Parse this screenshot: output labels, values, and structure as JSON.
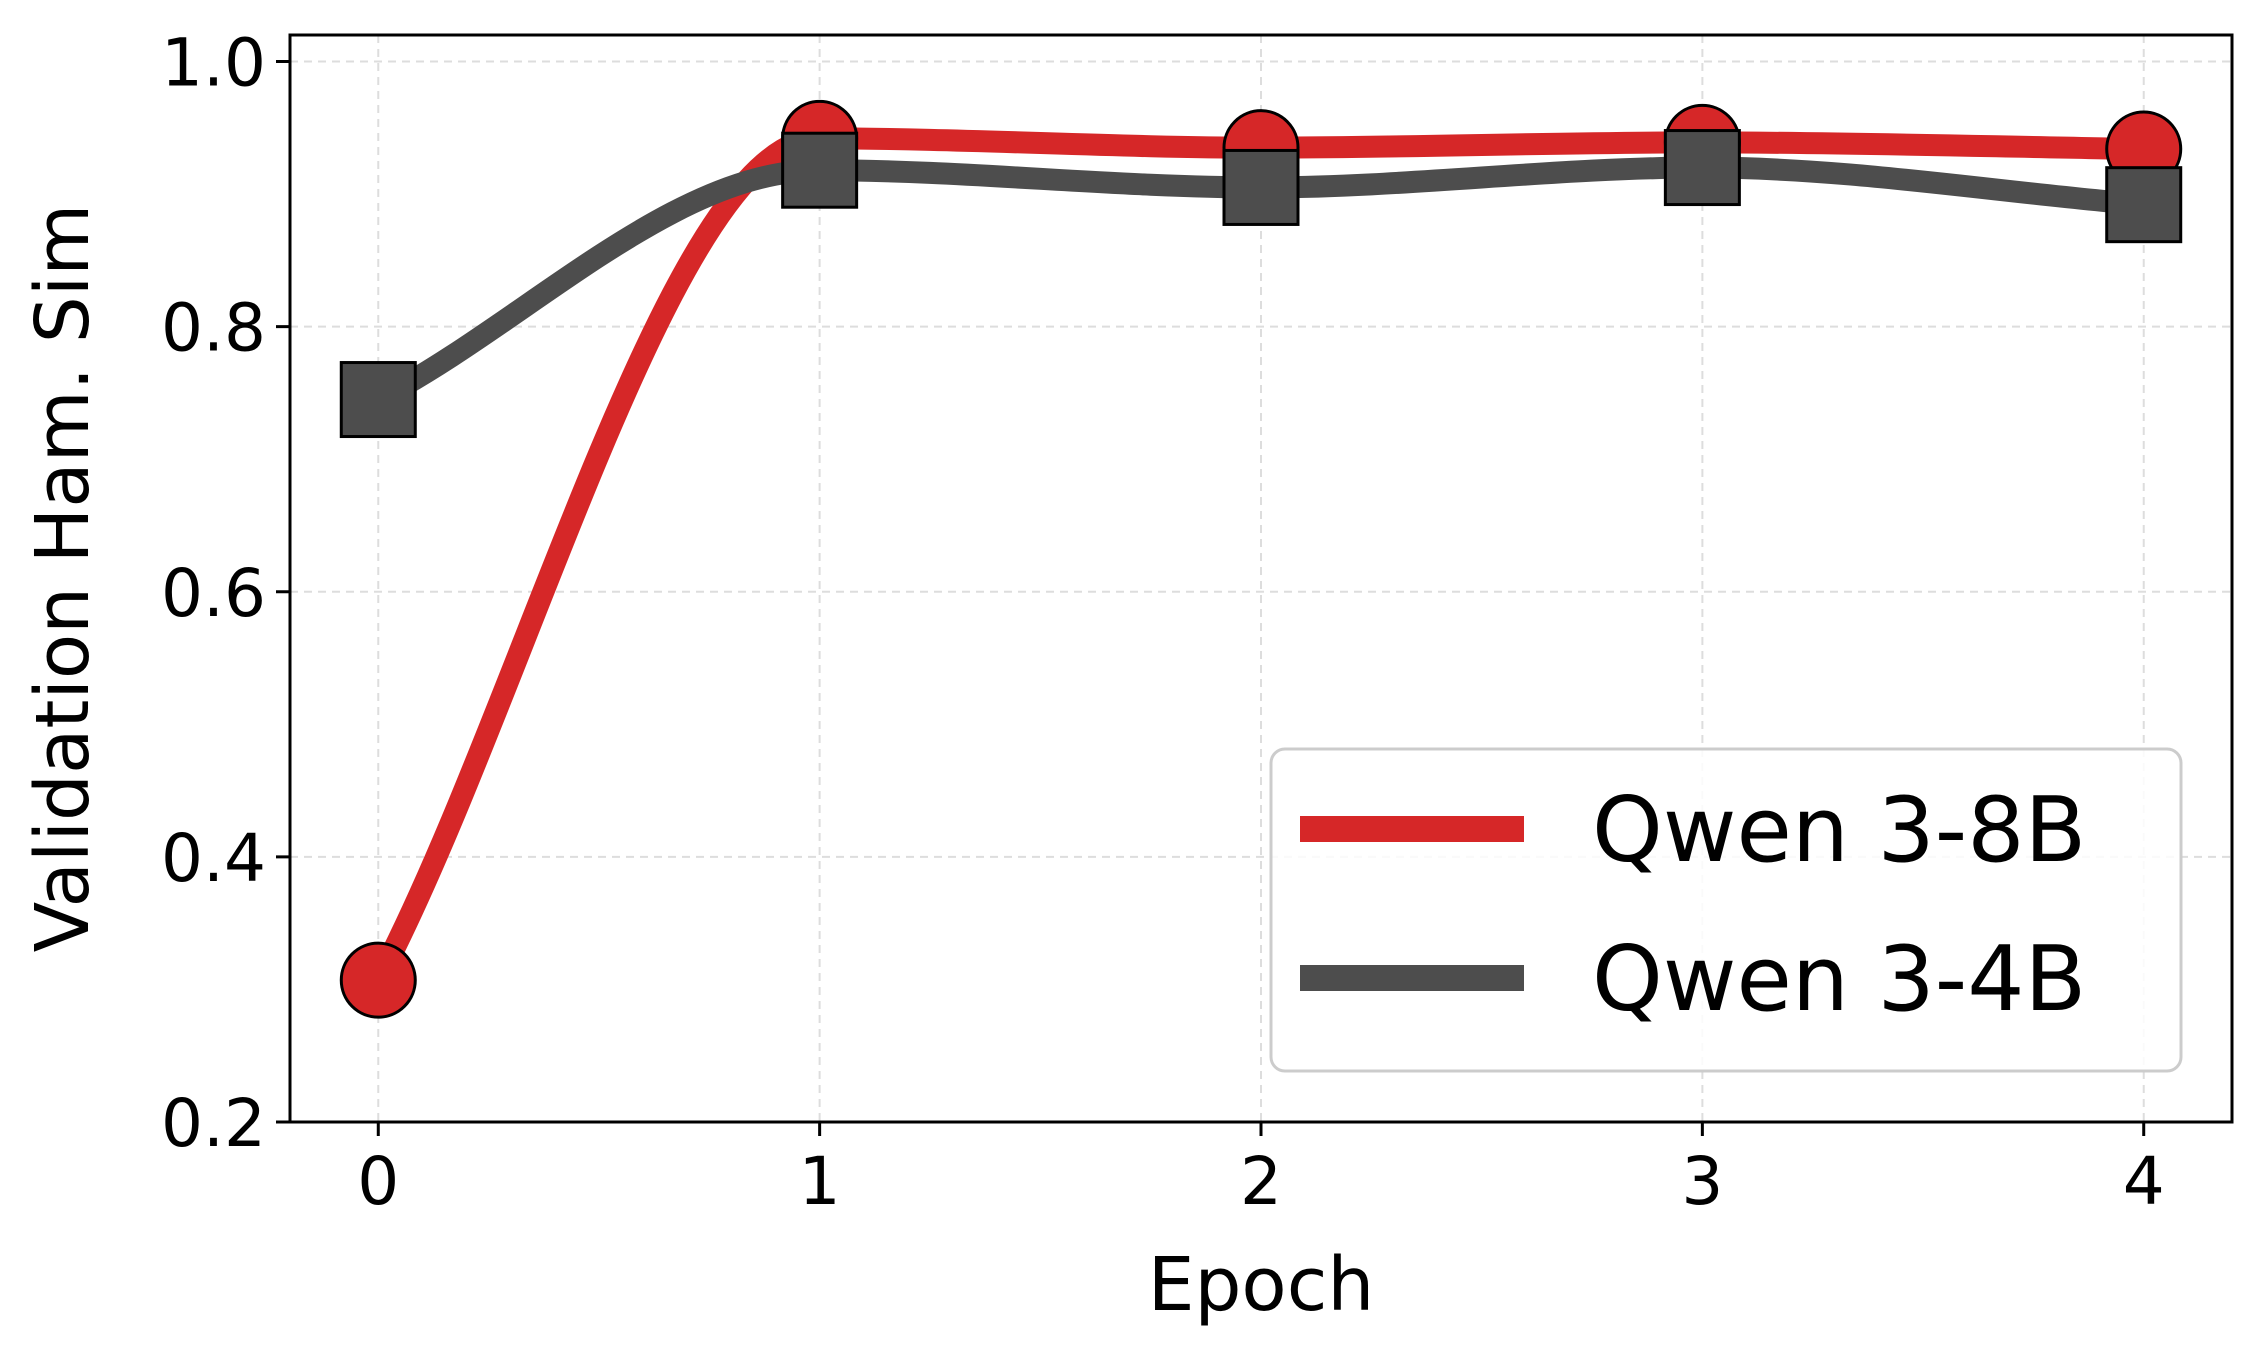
{
  "chart_data": {
    "type": "line",
    "title": "",
    "xlabel": "Epoch",
    "ylabel": "Validation Ham. Sim",
    "x": [
      0,
      1,
      2,
      3,
      4
    ],
    "xticks": [
      "0",
      "1",
      "2",
      "3",
      "4"
    ],
    "yticks": [
      "0.2",
      "0.4",
      "0.6",
      "0.8",
      "1.0"
    ],
    "xlim": [
      -0.2,
      4.2
    ],
    "ylim": [
      0.2,
      1.02
    ],
    "grid": true,
    "legend_position": "lower-right",
    "smooth": true,
    "series": [
      {
        "name": "Qwen 3-8B",
        "values": [
          0.307,
          0.942,
          0.935,
          0.939,
          0.934
        ],
        "color": "#d62728",
        "marker": "circle"
      },
      {
        "name": "Qwen 3-4B",
        "values": [
          0.745,
          0.918,
          0.905,
          0.92,
          0.892
        ],
        "color": "#4d4d4d",
        "marker": "square"
      }
    ]
  }
}
